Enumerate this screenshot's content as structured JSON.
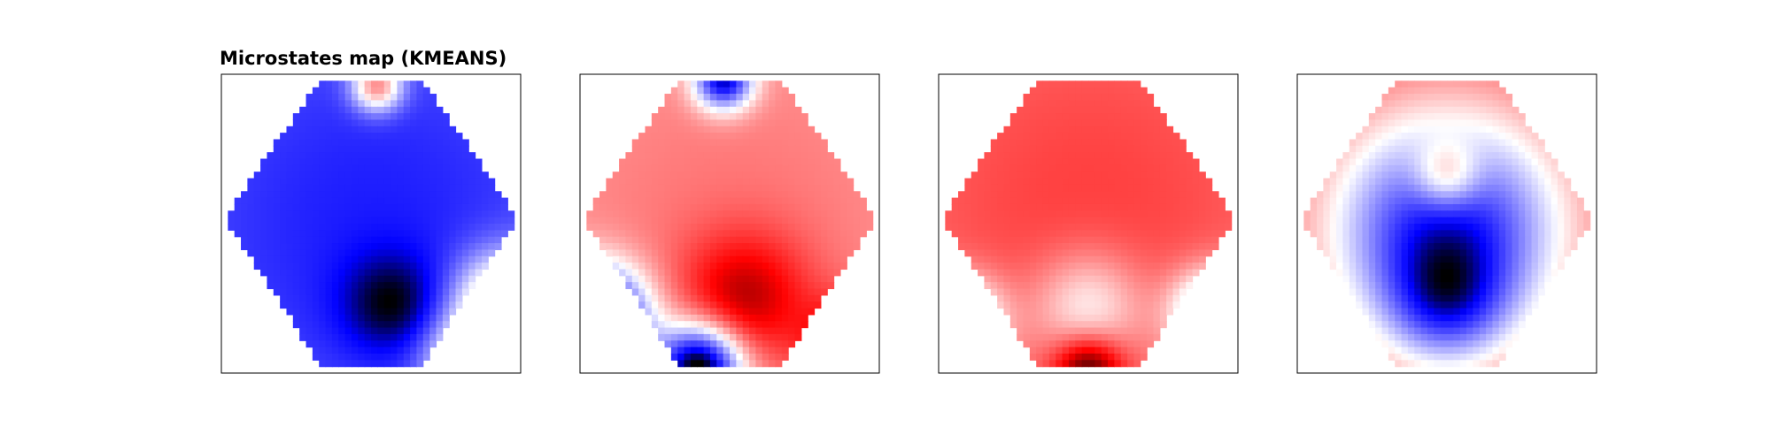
{
  "figure": {
    "title": "Microstates map (KMEANS)"
  },
  "chart_data": {
    "type": "heatmap",
    "title": "Microstates map (KMEANS)",
    "colormap": "bwr",
    "colors": {
      "negative": "#0000ff",
      "zero": "#ffffff",
      "positive": "#ff0000",
      "dark_negative": "#000000",
      "dark_positive": "#7f0000",
      "frame": "#000000"
    },
    "grid": false,
    "axes_visible": false,
    "maps": [
      {
        "name": "",
        "description_sign": "mostly negative, positive rim at top and lower-right edge",
        "blobs": [
          {
            "cx": 0.5,
            "cy": 0.5,
            "amp": -1.6,
            "s": 0.9
          },
          {
            "cx": 0.57,
            "cy": 0.77,
            "amp": -0.9,
            "s": 0.12
          },
          {
            "cx": 0.52,
            "cy": 0.04,
            "amp": 2.2,
            "s": 0.06
          },
          {
            "cx": 0.95,
            "cy": 0.77,
            "amp": 2.4,
            "s": 0.12
          },
          {
            "cx": 0.82,
            "cy": 0.96,
            "amp": 1.8,
            "s": 0.1
          }
        ]
      },
      {
        "name": "",
        "description_sign": "mostly positive, negative rim at top and lower-left edge",
        "blobs": [
          {
            "cx": 0.5,
            "cy": 0.5,
            "amp": 0.55,
            "s": 0.9
          },
          {
            "cx": 0.55,
            "cy": 0.75,
            "amp": 0.7,
            "s": 0.15
          },
          {
            "cx": 0.48,
            "cy": 0.02,
            "amp": -1.6,
            "s": 0.07
          },
          {
            "cx": 0.05,
            "cy": 0.82,
            "amp": -2.2,
            "s": 0.12
          },
          {
            "cx": 0.4,
            "cy": 0.98,
            "amp": -2.0,
            "s": 0.1
          },
          {
            "cx": 0.9,
            "cy": 0.9,
            "amp": 0.9,
            "s": 0.1
          }
        ]
      },
      {
        "name": "",
        "description_sign": "mostly positive, negative patches at lower left and lower right",
        "blobs": [
          {
            "cx": 0.5,
            "cy": 0.45,
            "amp": 1.1,
            "s": 0.9
          },
          {
            "cx": 0.5,
            "cy": 0.78,
            "amp": -0.9,
            "s": 0.13
          },
          {
            "cx": 0.08,
            "cy": 0.82,
            "amp": -1.5,
            "s": 0.1
          },
          {
            "cx": 0.92,
            "cy": 0.8,
            "amp": -1.9,
            "s": 0.1
          },
          {
            "cx": 0.5,
            "cy": 0.99,
            "amp": 1.4,
            "s": 0.08
          }
        ]
      },
      {
        "name": "",
        "description_sign": "positive outer ring, negative interior",
        "blobs": [
          {
            "cx": 0.5,
            "cy": 0.5,
            "amp": 1.6,
            "s": 0.95
          },
          {
            "cx": 0.5,
            "cy": 0.52,
            "amp": -3.2,
            "s": 0.3
          },
          {
            "cx": 0.5,
            "cy": 0.77,
            "amp": -1.2,
            "s": 0.14
          },
          {
            "cx": 0.5,
            "cy": 0.34,
            "amp": 1.2,
            "s": 0.08
          }
        ]
      }
    ]
  }
}
